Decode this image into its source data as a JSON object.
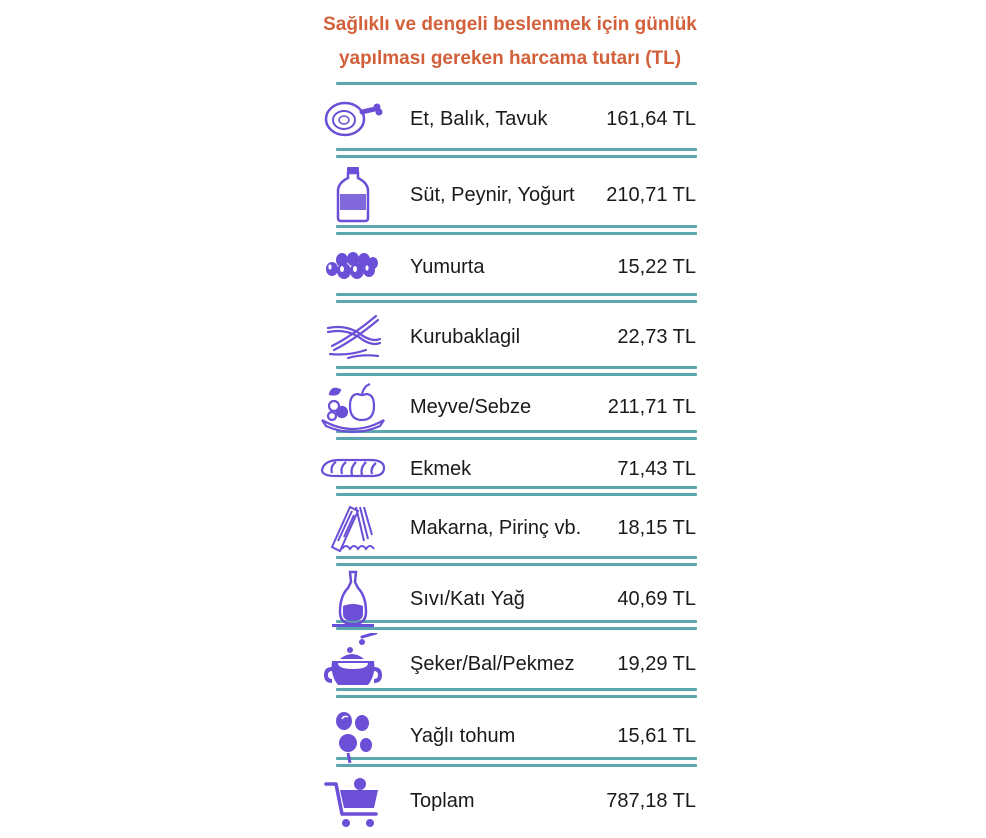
{
  "chart_data": {
    "type": "table",
    "title": "Sağlıklı ve dengeli beslenmek için günlük yapılması gereken harcama tutarı (TL)",
    "title_lines": [
      "Sağlıklı ve dengeli beslenmek için günlük",
      "yapılması gereken harcama tutarı (TL)"
    ],
    "title_color": "#d2603a",
    "icon_color": "#6b4fd6",
    "rule_color": "#5aa7ae",
    "rows": [
      {
        "label": "Et, Balık, Tavuk",
        "value": 161.64,
        "value_text": "161,64 TL",
        "icon": "meat-icon"
      },
      {
        "label": "Süt, Peynir, Yoğurt",
        "value": 210.71,
        "value_text": "210,71 TL",
        "icon": "milk-bottle-icon"
      },
      {
        "label": "Yumurta",
        "value": 15.22,
        "value_text": "15,22 TL",
        "icon": "eggs-icon"
      },
      {
        "label": "Kurubaklagil",
        "value": 22.73,
        "value_text": "22,73 TL",
        "icon": "legumes-icon"
      },
      {
        "label": "Meyve/Sebze",
        "value": 211.71,
        "value_text": "211,71 TL",
        "icon": "fruit-icon"
      },
      {
        "label": "Ekmek",
        "value": 71.43,
        "value_text": "71,43 TL",
        "icon": "bread-icon"
      },
      {
        "label": "Makarna, Pirinç vb.",
        "value": 18.15,
        "value_text": "18,15 TL",
        "icon": "pasta-icon"
      },
      {
        "label": "Sıvı/Katı Yağ",
        "value": 40.69,
        "value_text": "40,69 TL",
        "icon": "oil-bottle-icon"
      },
      {
        "label": "Şeker/Bal/Pekmez",
        "value": 19.29,
        "value_text": "19,29 TL",
        "icon": "honey-pot-icon"
      },
      {
        "label": "Yağlı tohum",
        "value": 15.61,
        "value_text": "15,61 TL",
        "icon": "nuts-icon"
      },
      {
        "label": "Toplam",
        "value": 787.18,
        "value_text": "787,18 TL",
        "icon": "shopping-cart-icon"
      }
    ]
  }
}
